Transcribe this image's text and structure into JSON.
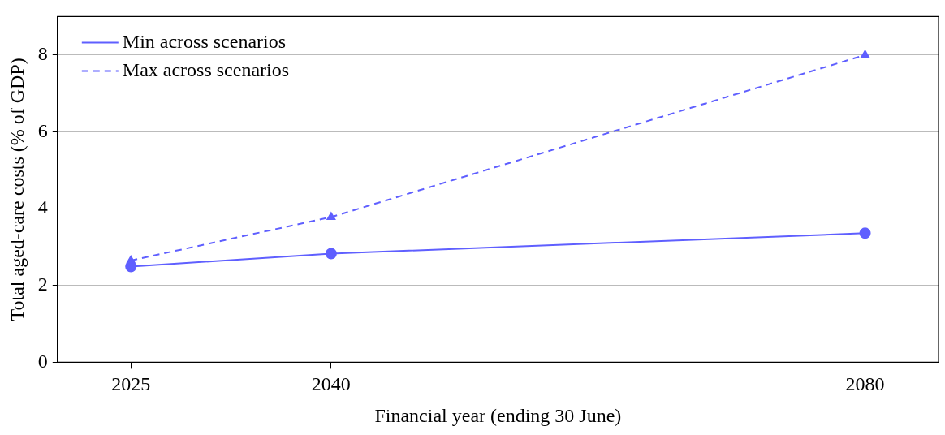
{
  "chart_data": {
    "type": "line",
    "xlabel": "Financial year (ending 30 June)",
    "ylabel": "Total aged-care costs (% of GDP)",
    "x": [
      2025,
      2040,
      2080
    ],
    "series": [
      {
        "name": "Min across scenarios",
        "color": "#5f5fff",
        "values": [
          2.49,
          2.83,
          3.36
        ],
        "marker": "circle",
        "line_style": "solid"
      },
      {
        "name": "Max across scenarios",
        "color": "#5f5fff",
        "values": [
          2.65,
          3.78,
          8.0
        ],
        "marker": "triangle",
        "line_style": "dashed"
      }
    ],
    "xlim": [
      2019.5,
      2085.5
    ],
    "xticks": [
      2025,
      2040,
      2080
    ],
    "ylim": [
      0,
      9
    ],
    "yticks": [
      0,
      2,
      4,
      6,
      8
    ],
    "grid": "y",
    "legend": "top left"
  }
}
